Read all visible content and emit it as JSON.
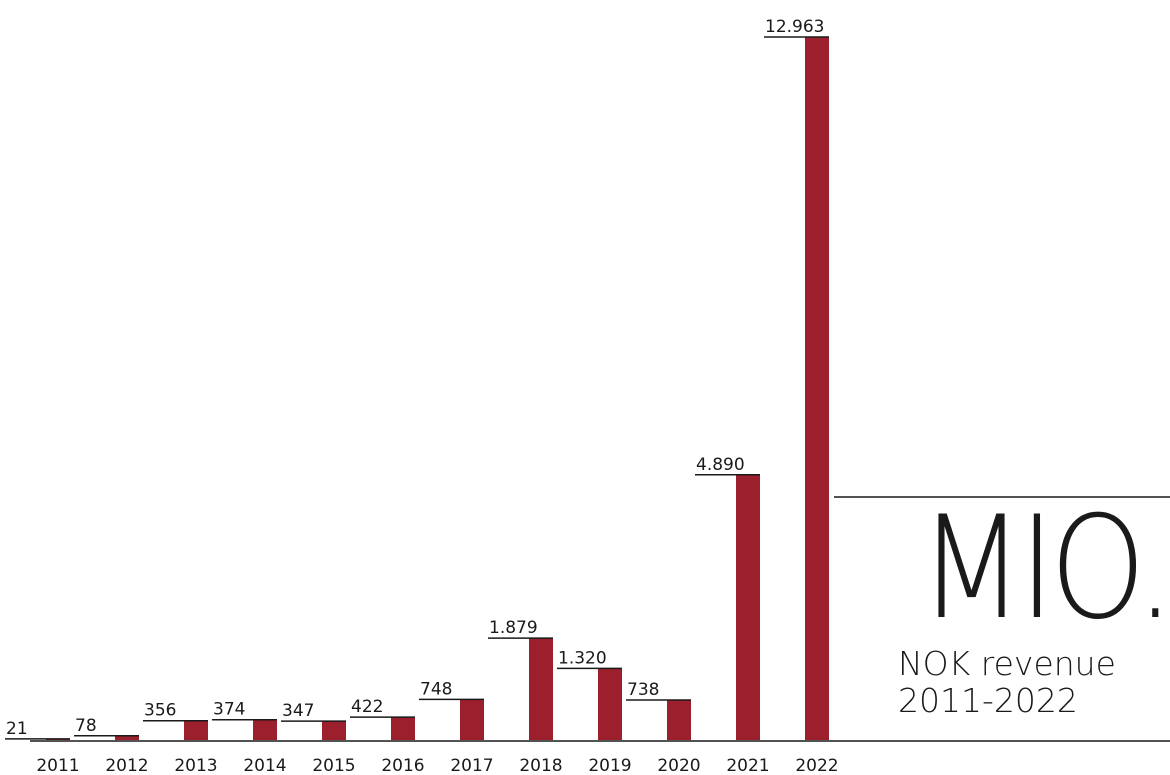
{
  "chart_data": {
    "type": "bar",
    "categories": [
      "2011",
      "2012",
      "2013",
      "2014",
      "2015",
      "2016",
      "2017",
      "2018",
      "2019",
      "2020",
      "2021",
      "2022"
    ],
    "values": [
      21,
      78,
      356,
      374,
      347,
      422,
      748,
      1879,
      1320,
      738,
      4890,
      12963
    ],
    "value_labels": [
      "21",
      "78",
      "356",
      "374",
      "347",
      "422",
      "748",
      "1.879",
      "1.320",
      "738",
      "4.890",
      "12.963"
    ],
    "title": "MIO.",
    "subtitle_lines": [
      "NOK revenue",
      "2011-2022"
    ],
    "xlabel": "",
    "ylabel": "",
    "ylim": [
      0,
      12963
    ],
    "grid": false,
    "legend": "none",
    "bar_color": "#9b1f2c",
    "text_color": "#1a1a1a"
  }
}
